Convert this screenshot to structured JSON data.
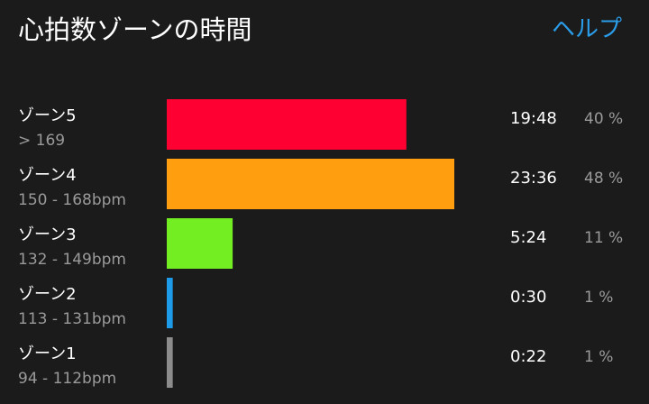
{
  "chart_data": {
    "type": "bar",
    "orientation": "horizontal",
    "title": "心拍数ゾーンの時間",
    "help": "ヘルプ",
    "categories": [
      "ゾーン5",
      "ゾーン4",
      "ゾーン3",
      "ゾーン2",
      "ゾーン1"
    ],
    "ranges": [
      "> 169",
      "150 - 168bpm",
      "132 - 149bpm",
      "113 - 131bpm",
      "94 - 112bpm"
    ],
    "times": [
      "19:48",
      "23:36",
      "5:24",
      "0:30",
      "0:22"
    ],
    "values": [
      40,
      48,
      11,
      1,
      1
    ],
    "value_labels": [
      "40 %",
      "48 %",
      "11 %",
      "1 %",
      "1 %"
    ],
    "colors": [
      "#ff0033",
      "#ff9f0f",
      "#73ee23",
      "#1e9be8",
      "#8c8c8c"
    ]
  }
}
